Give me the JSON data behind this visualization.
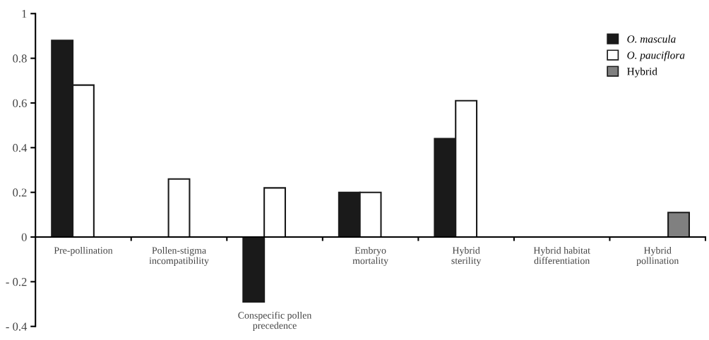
{
  "chart_data": {
    "type": "bar",
    "categories": [
      "Pre-pollination",
      "Pollen-stigma\nincompatibility",
      "Conspecific pollen\nprecedence",
      "Embryo\nmortality",
      "Hybrid\nsterility",
      "Hybrid habitat\ndifferentiation",
      "Hybrid\npollination"
    ],
    "series": [
      {
        "name": "O. mascula",
        "color": "#1a1a1a",
        "values": [
          0.88,
          null,
          -0.29,
          0.2,
          0.44,
          null,
          null
        ]
      },
      {
        "name": "O. pauciflora",
        "color": "#ffffff",
        "values": [
          0.68,
          0.26,
          0.22,
          0.2,
          0.61,
          null,
          null
        ]
      },
      {
        "name": "Hybrid",
        "color": "#808080",
        "values": [
          null,
          null,
          null,
          null,
          null,
          null,
          0.11
        ]
      }
    ],
    "ylim": [
      -0.4,
      1
    ],
    "yticks": [
      {
        "value": -0.4,
        "label": "- 0.4"
      },
      {
        "value": -0.2,
        "label": "- 0.2"
      },
      0,
      0.2,
      0.4,
      0.6,
      0.8,
      1
    ],
    "grid": false,
    "legend": "top right"
  }
}
